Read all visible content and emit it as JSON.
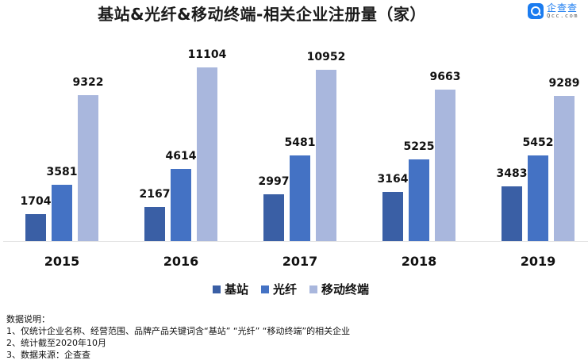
{
  "header": {
    "title": "基站&光纤&移动终端-相关企业注册量（家）",
    "logo": {
      "icon": "qcc-logo-icon",
      "name_cn": "企查查",
      "name_en": "Qcc.com",
      "color": "#1b7cf0"
    }
  },
  "chart_data": {
    "type": "bar",
    "title": "基站&光纤&移动终端-相关企业注册量（家）",
    "categories": [
      "2015",
      "2016",
      "2017",
      "2018",
      "2019"
    ],
    "series": [
      {
        "name": "基站",
        "color": "#3A5FA5",
        "values": [
          1704,
          2167,
          2997,
          3164,
          3483
        ]
      },
      {
        "name": "光纤",
        "color": "#4472C4",
        "values": [
          3581,
          4614,
          5481,
          5225,
          5452
        ]
      },
      {
        "name": "移动终端",
        "color": "#A9B7DD",
        "values": [
          9322,
          11104,
          10952,
          9663,
          9289
        ]
      }
    ],
    "xlabel": "",
    "ylabel": "",
    "ylim": [
      0,
      12000
    ],
    "grid": false,
    "legend_position": "bottom",
    "data_labels": true
  },
  "legend": {
    "items": [
      {
        "label": "基站",
        "color": "#3A5FA5"
      },
      {
        "label": "光纤",
        "color": "#4472C4"
      },
      {
        "label": "移动终端",
        "color": "#A9B7DD"
      }
    ]
  },
  "notes": {
    "heading": "数据说明：",
    "lines": [
      "1、仅统计企业名称、经营范围、品牌产品关键词含“基站” “光纤” “移动终端”的相关企业",
      "2、统计截至2020年10月",
      "3、数据来源：企查查"
    ]
  }
}
